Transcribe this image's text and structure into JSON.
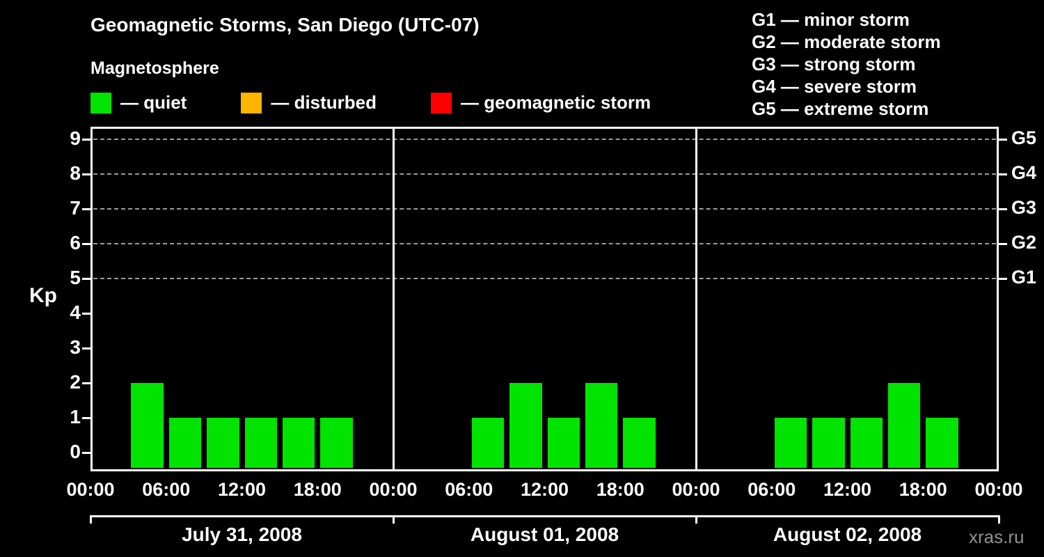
{
  "title": "Geomagnetic Storms, San Diego (UTC-07)",
  "legend": {
    "heading": "Magnetosphere",
    "items": [
      {
        "name": "quiet",
        "label": "— quiet",
        "color": "#00e400"
      },
      {
        "name": "disturbed",
        "label": "— disturbed",
        "color": "#ffb400"
      },
      {
        "name": "geomagnetic-storm",
        "label": "— geomagnetic storm",
        "color": "#ff0000"
      }
    ]
  },
  "storm_scale_legend": [
    "G1 — minor storm",
    "G2 — moderate storm",
    "G3 — strong storm",
    "G4 — severe storm",
    "G5 — extreme storm"
  ],
  "watermark": "xras.ru",
  "chart_data": {
    "type": "bar",
    "title": "Geomagnetic Storms, San Diego (UTC-07)",
    "ylabel": "Kp",
    "ylim": [
      0,
      9
    ],
    "yticks": [
      0,
      1,
      2,
      3,
      4,
      5,
      6,
      7,
      8,
      9
    ],
    "grid_dashed_at_kp": [
      5,
      6,
      7,
      8,
      9
    ],
    "right_axis": [
      {
        "label": "G1",
        "kp": 5
      },
      {
        "label": "G2",
        "kp": 6
      },
      {
        "label": "G3",
        "kp": 7
      },
      {
        "label": "G4",
        "kp": 8
      },
      {
        "label": "G5",
        "kp": 9
      }
    ],
    "x_tick_labels_per_day": [
      "00:00",
      "06:00",
      "12:00",
      "18:00"
    ],
    "closing_x_tick_label": "00:00",
    "interval_hours": 3,
    "bar_color": "#00e400",
    "grid": true,
    "legend_position": "top",
    "days": [
      {
        "date": "July 31, 2008",
        "kp": [
          0,
          2,
          1,
          1,
          1,
          1,
          1,
          0
        ]
      },
      {
        "date": "August 01, 2008",
        "kp": [
          0,
          0,
          1,
          2,
          1,
          2,
          1,
          0
        ]
      },
      {
        "date": "August 02, 2008",
        "kp": [
          0,
          0,
          1,
          1,
          1,
          2,
          1,
          0
        ]
      }
    ]
  }
}
